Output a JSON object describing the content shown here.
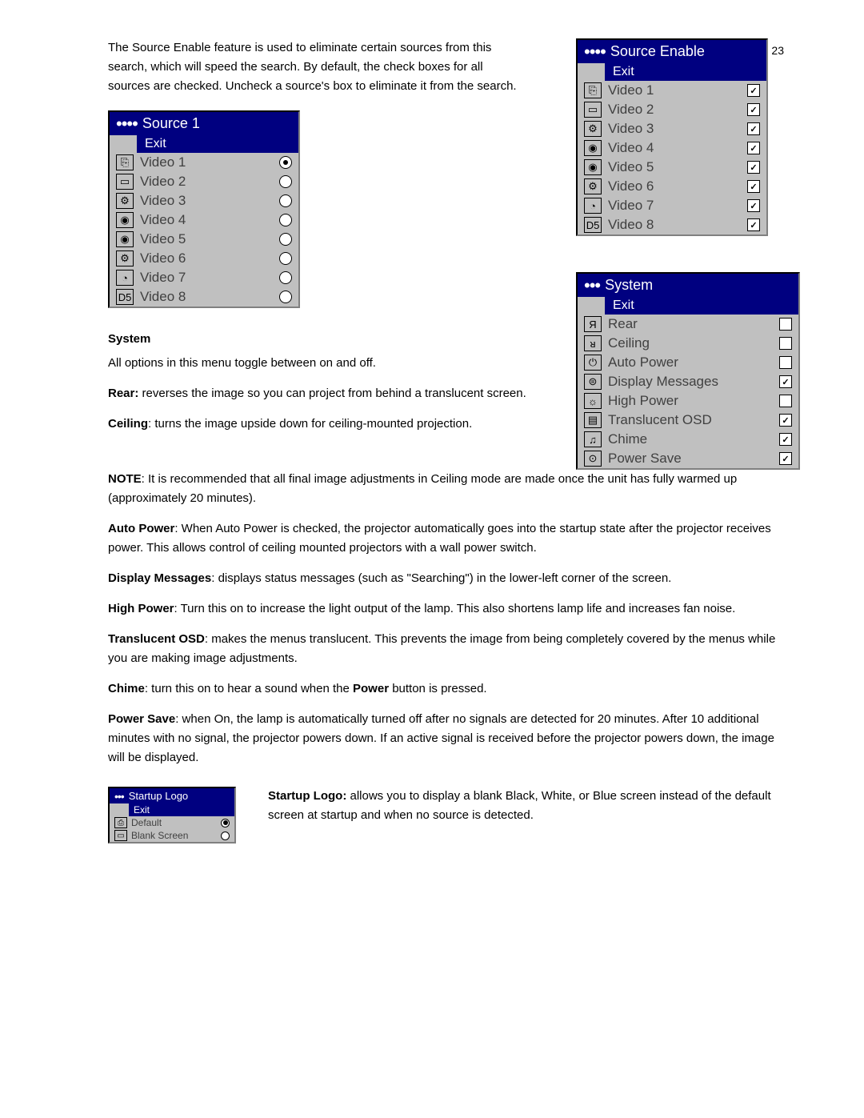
{
  "page_number": "23",
  "intro_text": "The Source Enable feature is used to eliminate certain sources from this search, which will speed the search. By default, the check boxes for all sources are checked. Uncheck a source's box to eliminate it from the search.",
  "source_enable_menu": {
    "title": "Source Enable",
    "dots": "••••",
    "exit": "Exit",
    "items": [
      {
        "icon": "⎘",
        "label": "Video 1",
        "checked": true
      },
      {
        "icon": "▭",
        "label": "Video 2",
        "checked": true
      },
      {
        "icon": "⚙",
        "label": "Video 3",
        "checked": true
      },
      {
        "icon": "◉",
        "label": "Video 4",
        "checked": true
      },
      {
        "icon": "◉",
        "label": "Video 5",
        "checked": true
      },
      {
        "icon": "⚙",
        "label": "Video 6",
        "checked": true
      },
      {
        "icon": "◔",
        "label": "Video 7",
        "checked": true
      },
      {
        "icon": "D5",
        "label": "Video 8",
        "checked": true
      }
    ]
  },
  "source1_menu": {
    "title": "Source 1",
    "dots": "••••",
    "exit": "Exit",
    "items": [
      {
        "icon": "⎘",
        "label": "Video 1",
        "selected": true
      },
      {
        "icon": "▭",
        "label": "Video 2",
        "selected": false
      },
      {
        "icon": "⚙",
        "label": "Video 3",
        "selected": false
      },
      {
        "icon": "◉",
        "label": "Video 4",
        "selected": false
      },
      {
        "icon": "◉",
        "label": "Video 5",
        "selected": false
      },
      {
        "icon": "⚙",
        "label": "Video 6",
        "selected": false
      },
      {
        "icon": "◔",
        "label": "Video 7",
        "selected": false
      },
      {
        "icon": "D5",
        "label": "Video 8",
        "selected": false
      }
    ]
  },
  "system_heading": "System",
  "system_intro": "All options in this menu toggle between on and off.",
  "rear_label": "Rear:",
  "rear_text": " reverses the image so you can project from behind a translucent screen.",
  "ceiling_label": "Ceiling",
  "ceiling_text": ": turns the image upside down for ceiling-mounted projection.",
  "system_menu": {
    "title": "System",
    "dots": "•••",
    "exit": "Exit",
    "items": [
      {
        "icon": "Я",
        "label": "Rear",
        "checked": false
      },
      {
        "icon": "ᴚ",
        "label": "Ceiling",
        "checked": false
      },
      {
        "icon": "⏻",
        "label": "Auto Power",
        "checked": false
      },
      {
        "icon": "⊜",
        "label": "Display Messages",
        "checked": true
      },
      {
        "icon": "☼",
        "label": "High Power",
        "checked": false
      },
      {
        "icon": "▤",
        "label": "Translucent OSD",
        "checked": true
      },
      {
        "icon": "♫",
        "label": "Chime",
        "checked": true
      },
      {
        "icon": "⊙",
        "label": "Power Save",
        "checked": true
      }
    ]
  },
  "note_label": "NOTE",
  "note_text": ": It is recommended that all final image adjustments in Ceiling mode are made once the unit has fully warmed up (approximately 20 minutes).",
  "autopower_label": "Auto Power",
  "autopower_text": ": When Auto Power is checked, the projector automatically goes into the startup state after the projector receives power. This allows control of ceiling mounted projectors with a wall power switch.",
  "dispmsg_label": "Display Messages",
  "dispmsg_text": ": displays status messages (such as \"Searching\") in the lower-left corner of the screen.",
  "highpower_label": "High Power",
  "highpower_text": ": Turn this on to increase the light output of the lamp. This also shortens lamp life and increases fan noise.",
  "transosd_label": "Translucent OSD",
  "transosd_text": ": makes the menus translucent. This prevents the image from being completely covered by the menus while you are making image adjustments.",
  "chime_label": "Chime",
  "chime_text": ": turn this on to hear a sound when the ",
  "chime_power_word": "Power",
  "chime_text2": " button is pressed.",
  "powersave_label": "Power Save",
  "powersave_text": ": when On, the lamp is automatically turned off after no signals are detected for 20 minutes. After 10 additional minutes with no signal, the projector powers down. If an active signal is received before the projector powers down, the image will be displayed.",
  "startup_logo_menu": {
    "title": "Startup Logo",
    "dots": "•••",
    "exit": "Exit",
    "items": [
      {
        "icon": "⎙",
        "label": "Default",
        "selected": true
      },
      {
        "icon": "▭",
        "label": "Blank Screen",
        "selected": false
      }
    ]
  },
  "startup_label": "Startup Logo:",
  "startup_text": " allows you to display a blank Black, White, or Blue screen instead of the default screen at startup and when no source is detected."
}
